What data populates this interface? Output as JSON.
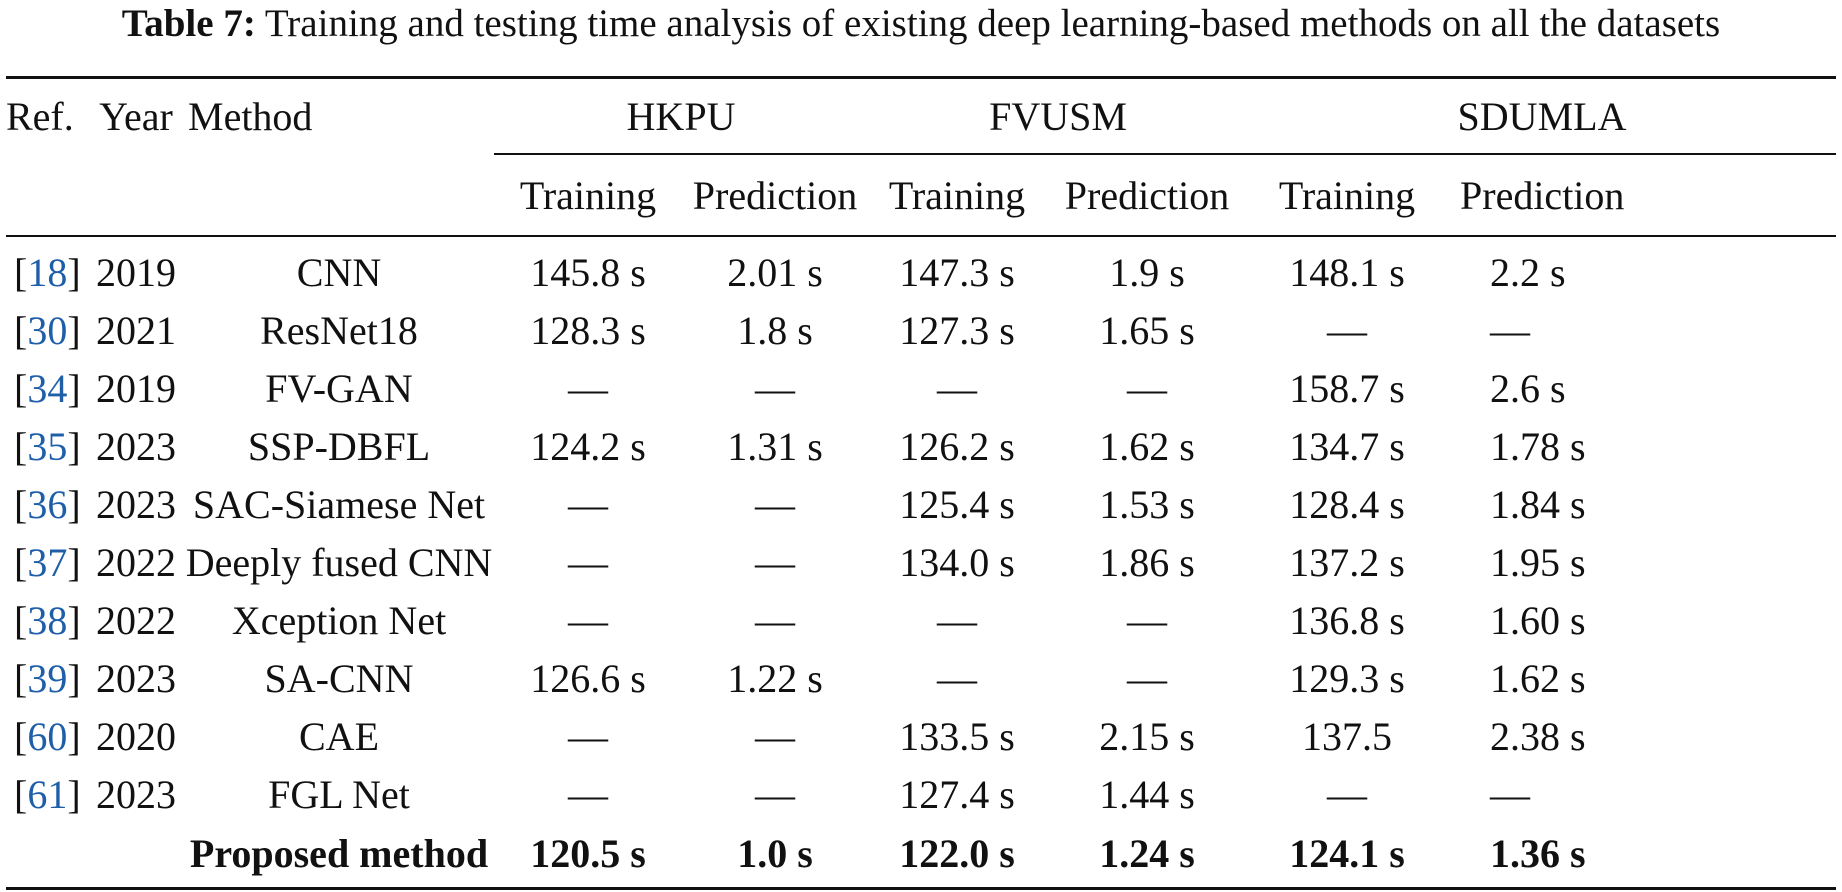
{
  "caption": {
    "label": "Table 7:",
    "text": "Training and testing time analysis of existing deep learning-based methods on all the datasets"
  },
  "headers": {
    "ref": "Ref.",
    "year": "Year",
    "method": "Method",
    "groups": [
      "HKPU",
      "FVUSM",
      "SDUMLA"
    ],
    "sub": [
      "Training",
      "Prediction",
      "Training",
      "Prediction",
      "Training",
      "Prediction"
    ]
  },
  "rows": [
    {
      "ref": "18",
      "year": "2019",
      "method": "CNN",
      "values": [
        "145.8 s",
        "2.01 s",
        "147.3 s",
        "1.9 s",
        "148.1 s",
        "2.2 s"
      ]
    },
    {
      "ref": "30",
      "year": "2021",
      "method": "ResNet18",
      "values": [
        "128.3 s",
        "1.8 s",
        "127.3 s",
        "1.65 s",
        "—",
        "—"
      ]
    },
    {
      "ref": "34",
      "year": "2019",
      "method": "FV-GAN",
      "values": [
        "—",
        "—",
        "—",
        "—",
        "158.7 s",
        "2.6 s"
      ]
    },
    {
      "ref": "35",
      "year": "2023",
      "method": "SSP-DBFL",
      "values": [
        "124.2 s",
        "1.31 s",
        "126.2 s",
        "1.62 s",
        "134.7 s",
        "1.78 s"
      ]
    },
    {
      "ref": "36",
      "year": "2023",
      "method": "SAC-Siamese Net",
      "values": [
        "—",
        "—",
        "125.4 s",
        "1.53 s",
        "128.4 s",
        "1.84 s"
      ]
    },
    {
      "ref": "37",
      "year": "2022",
      "method": "Deeply fused CNN",
      "values": [
        "—",
        "—",
        "134.0 s",
        "1.86 s",
        "137.2 s",
        "1.95 s"
      ]
    },
    {
      "ref": "38",
      "year": "2022",
      "method": "Xception Net",
      "values": [
        "—",
        "—",
        "—",
        "—",
        "136.8 s",
        "1.60 s"
      ]
    },
    {
      "ref": "39",
      "year": "2023",
      "method": "SA-CNN",
      "values": [
        "126.6 s",
        "1.22 s",
        "—",
        "—",
        "129.3 s",
        "1.62 s"
      ]
    },
    {
      "ref": "60",
      "year": "2020",
      "method": "CAE",
      "values": [
        "—",
        "—",
        "133.5 s",
        "2.15 s",
        "137.5",
        "2.38 s"
      ]
    },
    {
      "ref": "61",
      "year": "2023",
      "method": "FGL Net",
      "values": [
        "—",
        "—",
        "127.4 s",
        "1.44 s",
        "—",
        "—"
      ]
    }
  ],
  "proposed": {
    "method": "Proposed method",
    "values": [
      "120.5 s",
      "1.0 s",
      "122.0 s",
      "1.24 s",
      "124.1 s",
      "1.36 s"
    ]
  },
  "colors": {
    "link": "#1f5fa8",
    "text": "#111111"
  }
}
